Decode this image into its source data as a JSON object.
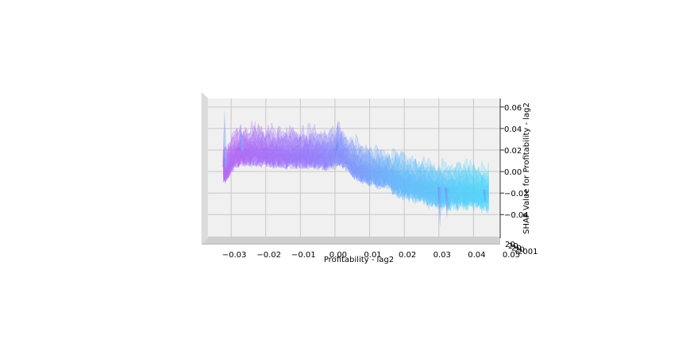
{
  "chart_data": {
    "type": "area",
    "projection": "3d",
    "title": "",
    "xlabel": "Profitability - lag2",
    "ylabel": "",
    "zlabel": "SHAP Value for Profitability - lag2",
    "x_ticks": [
      "−0.03",
      "−0.02",
      "−0.01",
      "0.00",
      "0.01",
      "0.02",
      "0.03",
      "0.04",
      "0.05"
    ],
    "z_ticks": [
      "0.06",
      "0.04",
      "0.02",
      "0.00",
      "−0.02",
      "−0.04"
    ],
    "depth_ticks": [
      "20",
      "20",
      "20",
      "20",
      "2001"
    ],
    "xlim": [
      -0.033,
      0.05
    ],
    "zlim": [
      -0.062,
      0.068
    ],
    "grid": true,
    "color_gradient": [
      "#b05cf4",
      "#8f72fb",
      "#5ab6fb",
      "#45d5f9"
    ],
    "series": [
      {
        "x": [
          -0.028,
          -0.025,
          -0.022,
          -0.018,
          -0.014,
          -0.01,
          -0.006,
          -0.002,
          0.002,
          0.005,
          0.008,
          0.011,
          0.015,
          0.019,
          0.023,
          0.027,
          0.031,
          0.035,
          0.039,
          0.043,
          0.047
        ],
        "y": [
          0.004,
          0.018,
          0.02,
          0.019,
          0.018,
          0.017,
          0.017,
          0.017,
          0.015,
          0.02,
          0.011,
          0.004,
          0.0,
          -0.002,
          -0.006,
          -0.009,
          -0.013,
          -0.015,
          -0.015,
          -0.015,
          -0.017
        ]
      }
    ]
  }
}
